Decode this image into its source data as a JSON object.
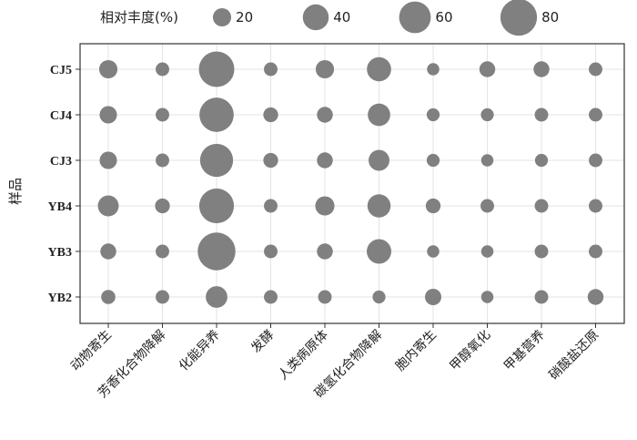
{
  "chart_data": {
    "type": "scatter",
    "subtype": "bubble",
    "legend": {
      "title": "相对丰度(%)",
      "sizes": [
        20,
        40,
        60,
        80
      ],
      "labels": [
        "20",
        "40",
        "60",
        "80"
      ],
      "placement": "top"
    },
    "ylabel": "样品",
    "xlabel": "",
    "x_categories": [
      "动物寄生",
      "芳香化合物降解",
      "化能异养",
      "发酵",
      "人类病原体",
      "碳氢化合物降解",
      "胞内寄生",
      "甲醇氧化",
      "甲基营养",
      "硝酸盐还原"
    ],
    "y_categories": [
      "CJ5",
      "CJ4",
      "CJ3",
      "YB4",
      "YB3",
      "YB2"
    ],
    "values": [
      [
        20,
        11,
        75,
        11,
        20,
        35,
        9,
        15,
        15,
        11
      ],
      [
        18,
        11,
        70,
        13,
        15,
        30,
        10,
        10,
        11,
        11
      ],
      [
        18,
        11,
        65,
        13,
        15,
        26,
        10,
        9,
        10,
        11
      ],
      [
        26,
        13,
        72,
        11,
        22,
        32,
        13,
        11,
        11,
        11
      ],
      [
        15,
        11,
        85,
        11,
        15,
        36,
        9,
        9,
        11,
        11
      ],
      [
        12,
        11,
        28,
        11,
        11,
        10,
        16,
        9,
        11,
        15
      ]
    ],
    "grid": true,
    "colors": {
      "point": "#808080",
      "grid": "#e3e3e3",
      "frame": "#333333"
    }
  }
}
